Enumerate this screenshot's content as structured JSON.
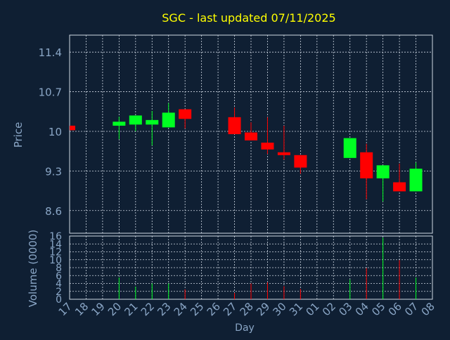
{
  "title": "SGC - last updated 07/11/2025",
  "colors": {
    "background": "#0f1f33",
    "title": "#ffff00",
    "axis_text": "#8aa6c6",
    "grid": "#cfd8e3",
    "up": "#00ff22",
    "down": "#ff0000"
  },
  "chart_data": {
    "type": "candlestick",
    "price_panel": {
      "ylabel": "Price",
      "ylim": [
        8.2,
        11.7
      ],
      "yticks": [
        "11.4",
        "10.7",
        "10",
        "9.3",
        "8.6"
      ],
      "ytick_values": [
        11.4,
        10.7,
        10.0,
        9.3,
        8.6
      ]
    },
    "volume_panel": {
      "ylabel": "Volume (0000)",
      "ylim": [
        0,
        16
      ],
      "yticks": [
        "16",
        "14",
        "12",
        "10",
        "8",
        "6",
        "4",
        "2",
        "0"
      ],
      "ytick_values": [
        16,
        14,
        12,
        10,
        8,
        6,
        4,
        2,
        0
      ]
    },
    "xlabel": "Day",
    "x_labels": [
      "17",
      "18",
      "19",
      "20",
      "21",
      "22",
      "23",
      "24",
      "25",
      "26",
      "27",
      "28",
      "29",
      "30",
      "31",
      "01",
      "02",
      "03",
      "04",
      "05",
      "06",
      "07",
      "08"
    ],
    "candles": [
      {
        "day": "17",
        "open": 10.1,
        "close": 10.02,
        "high": 10.1,
        "low": 10.02,
        "volume": 0
      },
      {
        "day": "20",
        "open": 10.1,
        "close": 10.17,
        "high": 10.26,
        "low": 9.86,
        "volume": 5.5
      },
      {
        "day": "21",
        "open": 10.12,
        "close": 10.28,
        "high": 10.28,
        "low": 10.0,
        "volume": 3.2
      },
      {
        "day": "22",
        "open": 10.12,
        "close": 10.2,
        "high": 10.36,
        "low": 9.75,
        "volume": 4.0
      },
      {
        "day": "23",
        "open": 10.07,
        "close": 10.33,
        "high": 10.5,
        "low": 10.07,
        "volume": 4.0
      },
      {
        "day": "24",
        "open": 10.39,
        "close": 10.22,
        "high": 10.39,
        "low": 10.05,
        "volume": 2.5
      },
      {
        "day": "27",
        "open": 10.25,
        "close": 9.95,
        "high": 10.42,
        "low": 9.95,
        "volume": 1.6
      },
      {
        "day": "28",
        "open": 9.98,
        "close": 9.84,
        "high": 10.16,
        "low": 9.84,
        "volume": 4.0
      },
      {
        "day": "29",
        "open": 9.8,
        "close": 9.68,
        "high": 10.25,
        "low": 9.6,
        "volume": 4.3
      },
      {
        "day": "30",
        "open": 9.63,
        "close": 9.58,
        "high": 10.1,
        "low": 9.5,
        "volume": 3.3
      },
      {
        "day": "31",
        "open": 9.58,
        "close": 9.36,
        "high": 9.58,
        "low": 9.25,
        "volume": 2.6
      },
      {
        "day": "03",
        "open": 9.53,
        "close": 9.88,
        "high": 9.88,
        "low": 9.53,
        "volume": 5.0
      },
      {
        "day": "04",
        "open": 9.63,
        "close": 9.17,
        "high": 9.78,
        "low": 8.8,
        "volume": 7.9
      },
      {
        "day": "05",
        "open": 9.17,
        "close": 9.4,
        "high": 9.4,
        "low": 8.76,
        "volume": 15.6
      },
      {
        "day": "06",
        "open": 9.1,
        "close": 8.94,
        "high": 9.43,
        "low": 8.94,
        "volume": 9.9
      },
      {
        "day": "07",
        "open": 8.94,
        "close": 9.34,
        "high": 9.45,
        "low": 8.94,
        "volume": 5.5
      }
    ]
  }
}
